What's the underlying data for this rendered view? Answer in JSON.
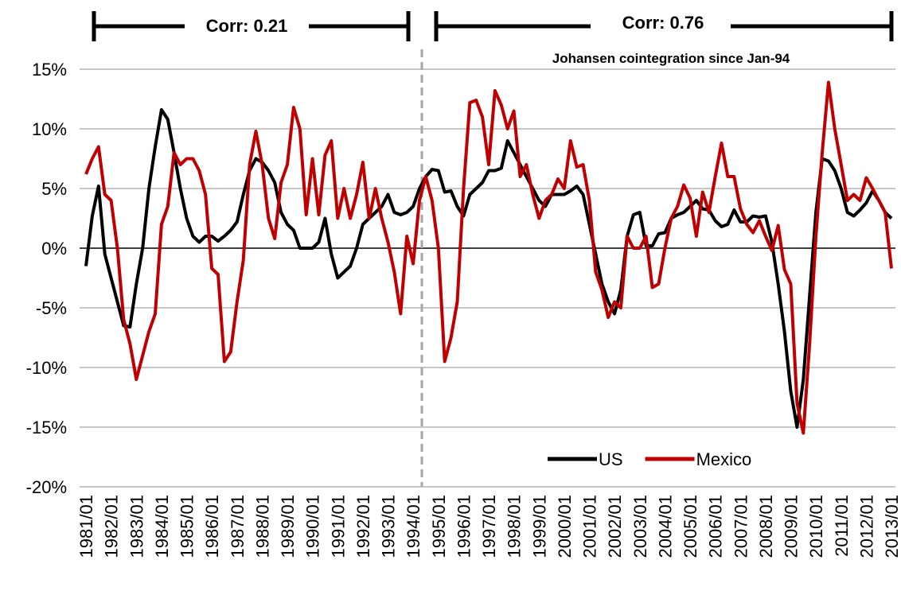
{
  "chart_data": {
    "type": "line",
    "annotations": [
      "Corr: 0.21",
      "Corr: 0.76",
      "Johansen cointegration since Jan-94"
    ],
    "categories": [
      "1981/01",
      null,
      null,
      null,
      "1982/01",
      null,
      null,
      null,
      "1983/01",
      null,
      null,
      null,
      "1984/01",
      null,
      null,
      null,
      "1985/01",
      null,
      null,
      null,
      "1986/01",
      null,
      null,
      null,
      "1987/01",
      null,
      null,
      null,
      "1988/01",
      null,
      null,
      null,
      "1989/01",
      null,
      null,
      null,
      "1990/01",
      null,
      null,
      null,
      "1991/01",
      null,
      null,
      null,
      "1992/01",
      null,
      null,
      null,
      "1993/01",
      null,
      null,
      null,
      "1994/01",
      null,
      null,
      null,
      "1995/01",
      null,
      null,
      null,
      "1996/01",
      null,
      null,
      null,
      "1997/01",
      null,
      null,
      null,
      "1998/01",
      null,
      null,
      null,
      "1999/01",
      null,
      null,
      null,
      "2000/01",
      null,
      null,
      null,
      "2001/01",
      null,
      null,
      null,
      "2002/01",
      null,
      null,
      null,
      "2003/01",
      null,
      null,
      null,
      "2004/01",
      null,
      null,
      null,
      "2005/01",
      null,
      null,
      null,
      "2006/01",
      null,
      null,
      null,
      "2007/01",
      null,
      null,
      null,
      "2008/01",
      null,
      null,
      null,
      "2009/01",
      null,
      null,
      null,
      "2010/01",
      null,
      null,
      null,
      "2011/01",
      null,
      null,
      null,
      "2012/01",
      null,
      null,
      null,
      "2013/01"
    ],
    "series": [
      {
        "name": "US",
        "color": "#000000",
        "values": [
          -1.5,
          2.7,
          5.2,
          -0.5,
          -2.5,
          -4.5,
          -6.5,
          -6.6,
          -3,
          0,
          5,
          8.5,
          11.6,
          10.8,
          8,
          5,
          2.5,
          1,
          0.5,
          1,
          1,
          0.6,
          1,
          1.5,
          2.2,
          4.5,
          6.5,
          7.5,
          7.2,
          6.5,
          5.5,
          3,
          2,
          1.5,
          0,
          0,
          0,
          0.5,
          2.5,
          -0.5,
          -2.5,
          -2,
          -1.5,
          0,
          2,
          2.5,
          3,
          3.5,
          4.5,
          3,
          2.8,
          3,
          3.5,
          5,
          6,
          6.6,
          6.5,
          4.7,
          4.8,
          3.5,
          2.7,
          4.5,
          5,
          5.5,
          6.5,
          6.5,
          6.7,
          9,
          8,
          7,
          6,
          5,
          4,
          3.5,
          4.5,
          4.5,
          4.5,
          4.8,
          5.2,
          4.5,
          2,
          -0.5,
          -3,
          -4.5,
          -5.5,
          -3.5,
          1,
          2.8,
          3,
          0.2,
          0.2,
          1.2,
          1.3,
          2.5,
          2.8,
          3,
          3.5,
          4,
          3.3,
          3.2,
          2.3,
          1.8,
          2,
          3.2,
          2.2,
          2.2,
          2.7,
          2.6,
          2.7,
          0.5,
          -3,
          -7,
          -12,
          -15,
          -11,
          -4,
          3,
          7.5,
          7.3,
          6.5,
          5,
          3,
          2.7,
          3.2,
          3.8,
          4.8,
          4,
          3,
          2.5
        ]
      },
      {
        "name": "Mexico",
        "color": "#c00000",
        "values": [
          6.2,
          7.5,
          8.5,
          4.5,
          4,
          0,
          -6,
          -8,
          -11,
          -9,
          -7,
          -5.5,
          2,
          3.5,
          8,
          7,
          7.5,
          7.5,
          6.5,
          4.5,
          -1.7,
          -2.2,
          -9.5,
          -8.7,
          -4.5,
          -1,
          7,
          9.8,
          7,
          2.5,
          0.8,
          5.5,
          7,
          11.8,
          10,
          2.8,
          7.5,
          2.8,
          7.8,
          9,
          2.5,
          5,
          2.5,
          4.5,
          7.2,
          2.5,
          5,
          2.5,
          0.5,
          -2,
          -5.5,
          1,
          -1.3,
          4,
          6,
          4,
          0,
          -9.5,
          -7.5,
          -4.5,
          5,
          12.2,
          12.4,
          11,
          7,
          13.2,
          12,
          10,
          11.5,
          6,
          7,
          4.5,
          2.5,
          4,
          4.5,
          5.8,
          5,
          9,
          6.8,
          7,
          4,
          -2,
          -3.5,
          -5.8,
          -4.5,
          -5,
          1,
          0,
          0,
          1,
          -3.3,
          -3,
          0,
          2.5,
          3.5,
          5.3,
          4.2,
          1,
          4.7,
          3,
          6,
          8.8,
          6,
          6,
          3.3,
          2,
          1.3,
          2.3,
          1,
          -0.2,
          1.9,
          -1.8,
          -3,
          -13,
          -15.5,
          -8,
          1,
          8,
          13.9,
          10,
          7,
          4,
          4.5,
          4,
          5.9,
          5,
          4,
          3,
          -1.7
        ]
      }
    ],
    "ylim": [
      -20,
      15
    ],
    "yticks": [
      {
        "value": -20,
        "label": "-20%"
      },
      {
        "value": -15,
        "label": "-15%"
      },
      {
        "value": -10,
        "label": "-10%"
      },
      {
        "value": -5,
        "label": "-5%"
      },
      {
        "value": 0,
        "label": "0%"
      },
      {
        "value": 5,
        "label": "5%"
      },
      {
        "value": 10,
        "label": "10%"
      },
      {
        "value": 15,
        "label": "15%"
      }
    ],
    "grid": true,
    "legend": "lower right"
  }
}
